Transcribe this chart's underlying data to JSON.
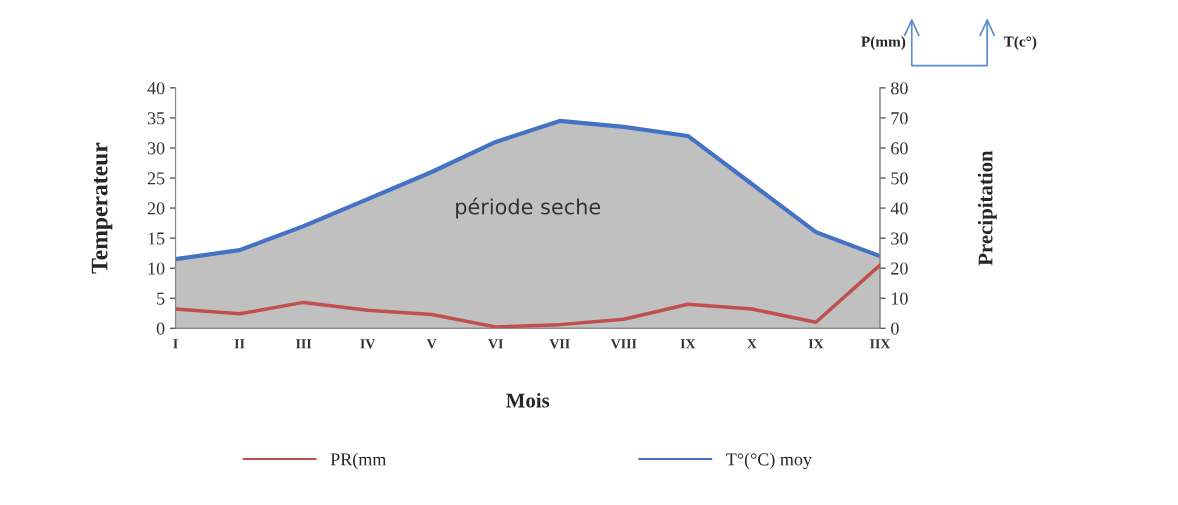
{
  "chart_data": {
    "type": "line",
    "xlabel": "Mois",
    "ylabel": "Temperateur",
    "y2label": "Precipitation",
    "categories": [
      "I",
      "II",
      "III",
      "IV",
      "V",
      "VI",
      "VII",
      "VIII",
      "IX",
      "X",
      "IX",
      "IIX"
    ],
    "series": [
      {
        "name": "PR(mm",
        "axis": "y2",
        "color": "#c0504d",
        "values": [
          6.4,
          4.8,
          8.6,
          6,
          4.6,
          0.4,
          1.2,
          3,
          8,
          6.4,
          2,
          21
        ]
      },
      {
        "name": "T°(°C) moy",
        "type": "area",
        "color": "#4472c4",
        "values": [
          11.5,
          13,
          17,
          21.5,
          26,
          31,
          34.5,
          33.5,
          32,
          24,
          16,
          12
        ]
      }
    ],
    "ylim": [
      0,
      40
    ],
    "yticks": [
      0,
      5,
      10,
      15,
      20,
      25,
      30,
      35,
      40
    ],
    "y2lim": [
      0,
      80
    ],
    "y2ticks": [
      0,
      10,
      20,
      30,
      40,
      50,
      60,
      70,
      80
    ],
    "annotations": [
      "période seche",
      "P(mm)",
      "T(c°)"
    ],
    "legend": "bottom",
    "grid": false
  }
}
